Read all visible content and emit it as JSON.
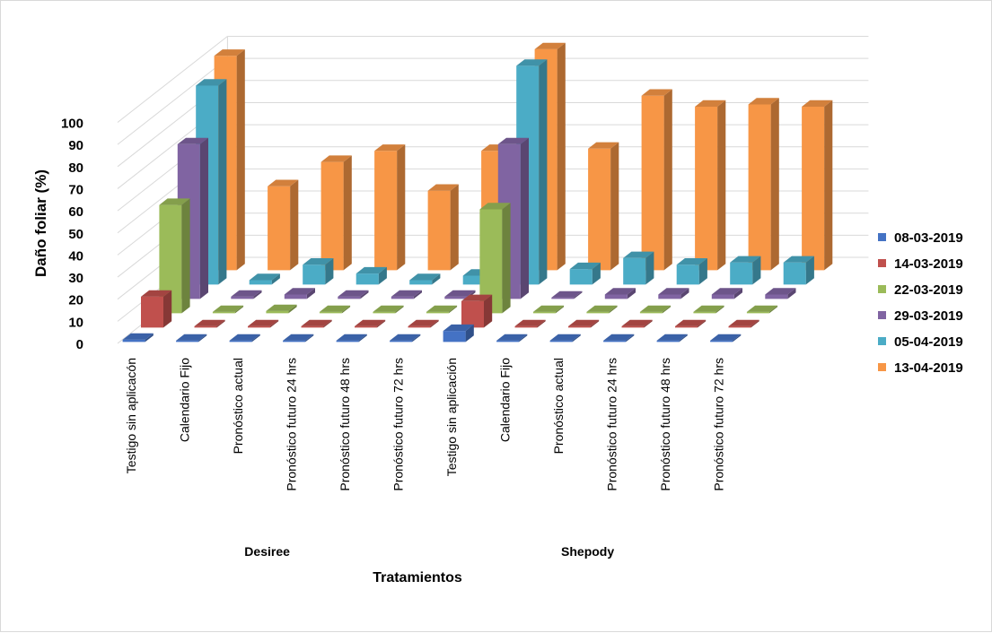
{
  "chart_data": {
    "type": "bar",
    "subtype": "3d-clustered-column",
    "ylabel": "Daño foliar (%)",
    "xlabel": "Tratamientos",
    "ylim": [
      0,
      100
    ],
    "yticks": [
      "0",
      "10",
      "20",
      "30",
      "40",
      "50",
      "60",
      "70",
      "80",
      "90",
      "100"
    ],
    "groups": [
      {
        "name": "Desiree",
        "categories": [
          "Testigo sin aplicacón",
          "Calendario Fijo",
          "Pronóstico actual",
          "Pronóstico futuro 24 hrs",
          "Pronóstico futuro 48 hrs",
          "Pronóstico futuro 72 hrs"
        ]
      },
      {
        "name": "Shepody",
        "categories": [
          "Testigo sin aplicación",
          "Calendario Fijo",
          "Pronóstico actual",
          "Pronóstico futuro 24 hrs",
          "Pronóstico futuro 48 hrs",
          "Pronóstico futuro 72 hrs"
        ]
      }
    ],
    "legend_position": "right",
    "series": [
      {
        "name": "08-03-2019",
        "color": "#4472C4",
        "values": [
          1,
          0,
          0,
          0,
          0,
          0,
          5,
          0,
          0,
          0,
          0,
          0
        ]
      },
      {
        "name": "14-03-2019",
        "color": "#C0504D",
        "values": [
          14,
          0,
          0,
          0,
          0,
          0,
          12,
          0,
          0,
          0,
          0,
          0
        ]
      },
      {
        "name": "22-03-2019",
        "color": "#9BBB59",
        "values": [
          49,
          0,
          1,
          0,
          0,
          0,
          47,
          0,
          0,
          0,
          0,
          0
        ]
      },
      {
        "name": "29-03-2019",
        "color": "#8064A2",
        "values": [
          70,
          1,
          2,
          1,
          1,
          1,
          70,
          0,
          2,
          2,
          2,
          2
        ]
      },
      {
        "name": "05-04-2019",
        "color": "#4BACC6",
        "values": [
          90,
          2,
          9,
          5,
          2,
          4,
          99,
          7,
          12,
          9,
          10,
          10
        ]
      },
      {
        "name": "13-04-2019",
        "color": "#F79646",
        "values": [
          97,
          38,
          49,
          54,
          36,
          54,
          100,
          55,
          79,
          74,
          75,
          74
        ]
      }
    ]
  }
}
